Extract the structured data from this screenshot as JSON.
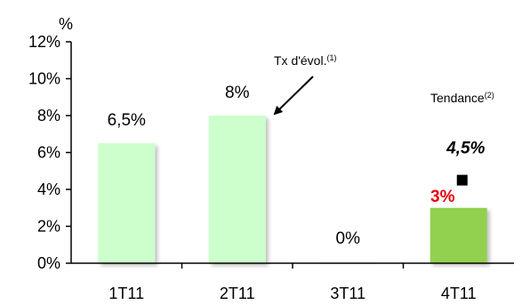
{
  "chart_data": {
    "type": "bar",
    "unit_label": "%",
    "categories": [
      "1T11",
      "2T11",
      "3T11",
      "4T11"
    ],
    "values": [
      6.5,
      8,
      0,
      3
    ],
    "data_labels": [
      "6,5%",
      "8%",
      "0%",
      "3%"
    ],
    "ylim": [
      0,
      12
    ],
    "yticks": [
      0,
      2,
      4,
      6,
      8,
      10,
      12
    ],
    "ytick_labels": [
      "0%",
      "2%",
      "4%",
      "6%",
      "8%",
      "10%",
      "12%"
    ],
    "grid": false,
    "colors": {
      "bar_light": "#ccffcc",
      "bar_highlight": "#92d050",
      "highlight_label": "#e8000b",
      "marker": "#000000"
    },
    "highlight_index": 3,
    "trend": {
      "category": "4T11",
      "value": 4.5,
      "label": "4,5%",
      "marker": "square"
    },
    "annotations": {
      "evol_label": "Tx d'évol.",
      "evol_note": "(1)",
      "trend_label": "Tendance",
      "trend_note": "(2)"
    }
  }
}
